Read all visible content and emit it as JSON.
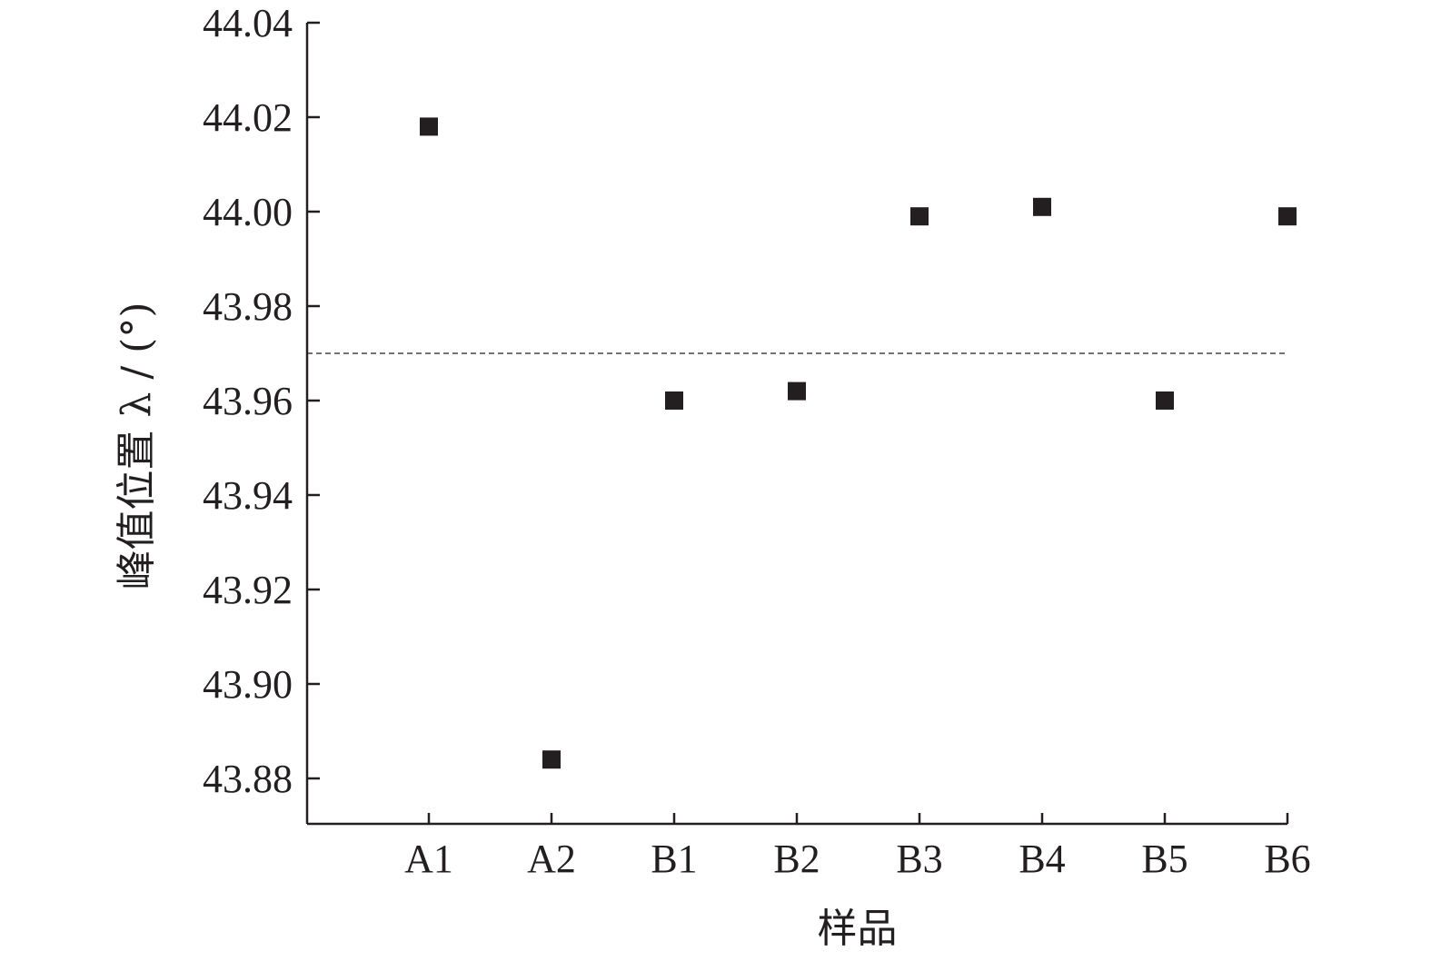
{
  "chart_data": {
    "type": "scatter",
    "title": "",
    "xlabel": "样品",
    "ylabel": "峰值位置 λ / (°)",
    "categories": [
      "A1",
      "A2",
      "B1",
      "B2",
      "B3",
      "B4",
      "B5",
      "B6"
    ],
    "series": [
      {
        "values": [
          44.018,
          43.884,
          43.96,
          43.962,
          43.999,
          44.001,
          43.96,
          43.999
        ]
      }
    ],
    "reference_line": {
      "y": 43.97,
      "style": "dashed"
    },
    "ylim": [
      43.87,
      44.04
    ],
    "yticks": [
      "43.88",
      "43.90",
      "43.92",
      "43.94",
      "43.96",
      "43.98",
      "44.00",
      "44.02",
      "44.04"
    ],
    "marker": "square",
    "colors": {
      "ink": "#231f20",
      "background": "#ffffff"
    },
    "grid": false,
    "legend": "none"
  }
}
